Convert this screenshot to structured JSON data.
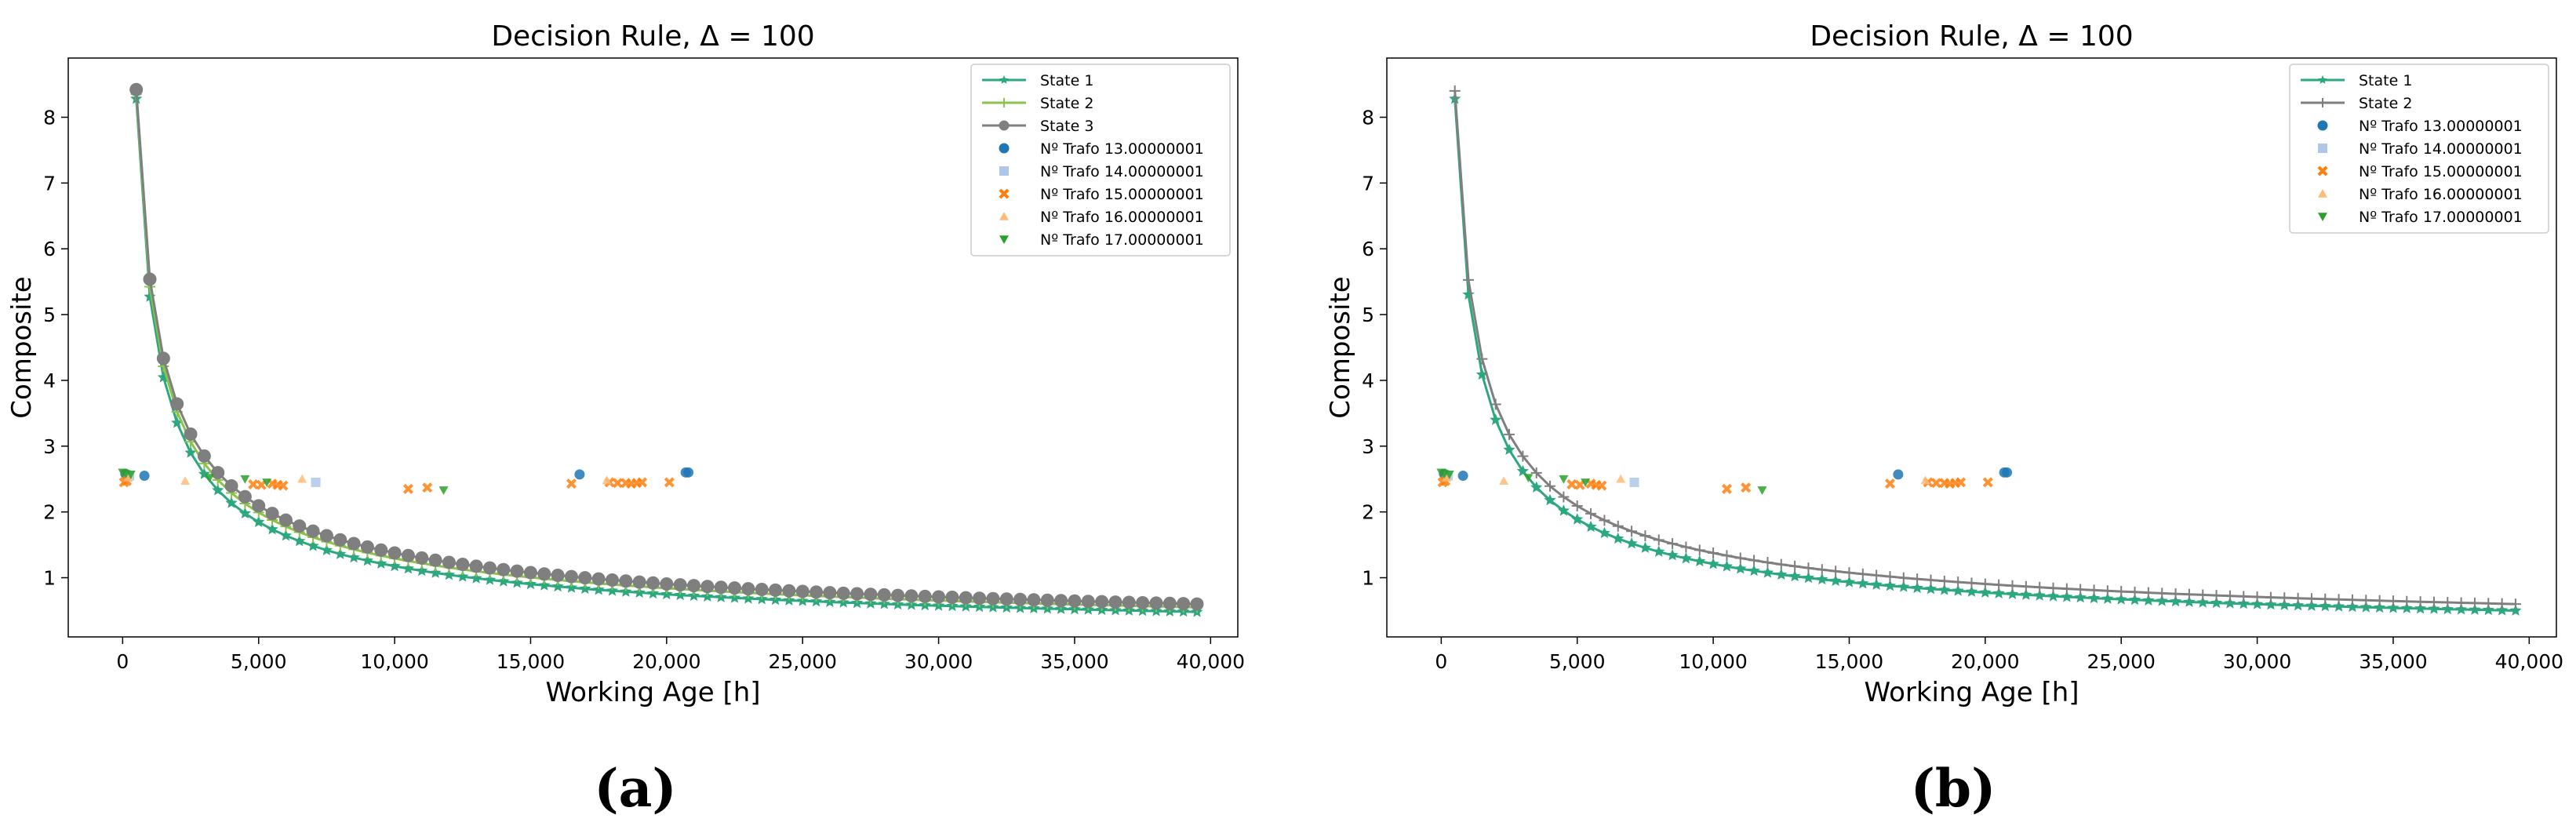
{
  "chart_data": [
    {
      "type": "line",
      "title": "Decision Rule, Δ = 100",
      "xlabel": "Working Age [h]",
      "ylabel": "Composite",
      "caption": "(a)",
      "xlim": [
        -2000,
        41000
      ],
      "ylim": [
        0.1,
        8.9
      ],
      "xticks": [
        0,
        5000,
        10000,
        15000,
        20000,
        25000,
        30000,
        35000,
        40000
      ],
      "xtick_labels": [
        "0",
        "5,000",
        "10,000",
        "15,000",
        "20,000",
        "25,000",
        "30,000",
        "35,000",
        "40,000"
      ],
      "yticks": [
        1,
        2,
        3,
        4,
        5,
        6,
        7,
        8
      ],
      "ytick_labels": [
        "1",
        "2",
        "3",
        "4",
        "5",
        "6",
        "7",
        "8"
      ],
      "grid": false,
      "legend_position": "top-right",
      "curves": [
        {
          "name": "State 1",
          "color": "#2ca87f",
          "marker": "star",
          "y_start": 8.28,
          "y_end": 0.48,
          "x_start": 500,
          "x_end": 39500,
          "step": 500
        },
        {
          "name": "State 2",
          "color": "#8bc34a",
          "marker": "plus",
          "y_start": 8.35,
          "y_end": 0.55,
          "x_start": 500,
          "x_end": 39500,
          "step": 500
        },
        {
          "name": "State 3",
          "color": "#7f7f7f",
          "marker": "circle",
          "y_start": 8.42,
          "y_end": 0.6,
          "x_start": 500,
          "x_end": 39500,
          "step": 500
        }
      ],
      "scatter": [
        {
          "name": "Nº Trafo 13.00000001",
          "color": "#1f77b4",
          "marker": "circle",
          "points": [
            [
              100,
              2.58
            ],
            [
              800,
              2.55
            ],
            [
              16800,
              2.57
            ],
            [
              20700,
              2.6
            ],
            [
              20800,
              2.6
            ]
          ]
        },
        {
          "name": "Nº Trafo 14.00000001",
          "color": "#aec7e8",
          "marker": "square",
          "points": [
            [
              7100,
              2.45
            ],
            [
              250,
              2.55
            ]
          ]
        },
        {
          "name": "Nº Trafo 15.00000001",
          "color": "#ff7f0e",
          "marker": "x",
          "points": [
            [
              50,
              2.45
            ],
            [
              150,
              2.47
            ],
            [
              4800,
              2.42
            ],
            [
              5100,
              2.41
            ],
            [
              5500,
              2.43
            ],
            [
              5700,
              2.41
            ],
            [
              5900,
              2.4
            ],
            [
              10500,
              2.35
            ],
            [
              11200,
              2.37
            ],
            [
              16500,
              2.43
            ],
            [
              17900,
              2.45
            ],
            [
              18200,
              2.44
            ],
            [
              18500,
              2.44
            ],
            [
              18700,
              2.43
            ],
            [
              18900,
              2.44
            ],
            [
              19100,
              2.45
            ],
            [
              20100,
              2.45
            ]
          ]
        },
        {
          "name": "Nº Trafo 16.00000001",
          "color": "#ffbb78",
          "marker": "triangle-up",
          "points": [
            [
              2300,
              2.47
            ],
            [
              6600,
              2.5
            ],
            [
              17800,
              2.48
            ],
            [
              200,
              2.52
            ]
          ]
        },
        {
          "name": "Nº Trafo 17.00000001",
          "color": "#2ca02c",
          "marker": "triangle-down",
          "points": [
            [
              0,
              2.6
            ],
            [
              120,
              2.58
            ],
            [
              300,
              2.57
            ],
            [
              3200,
              2.52
            ],
            [
              4500,
              2.5
            ],
            [
              5300,
              2.45
            ],
            [
              11800,
              2.33
            ]
          ]
        }
      ]
    },
    {
      "type": "line",
      "title": "Decision Rule, Δ = 100",
      "xlabel": "Working Age [h]",
      "ylabel": "Composite",
      "caption": "(b)",
      "xlim": [
        -2000,
        41000
      ],
      "ylim": [
        0.1,
        8.9
      ],
      "xticks": [
        0,
        5000,
        10000,
        15000,
        20000,
        25000,
        30000,
        35000,
        40000
      ],
      "xtick_labels": [
        "0",
        "5,000",
        "10,000",
        "15,000",
        "20,000",
        "25,000",
        "30,000",
        "35,000",
        "40,000"
      ],
      "yticks": [
        1,
        2,
        3,
        4,
        5,
        6,
        7,
        8
      ],
      "ytick_labels": [
        "1",
        "2",
        "3",
        "4",
        "5",
        "6",
        "7",
        "8"
      ],
      "grid": false,
      "legend_position": "top-right",
      "curves": [
        {
          "name": "State 1",
          "color": "#2ca87f",
          "marker": "star",
          "y_start": 8.28,
          "y_end": 0.5,
          "x_start": 500,
          "x_end": 39500,
          "step": 500
        },
        {
          "name": "State 2",
          "color": "#7f7f7f",
          "marker": "plus",
          "y_start": 8.4,
          "y_end": 0.6,
          "x_start": 500,
          "x_end": 39500,
          "step": 500
        }
      ],
      "scatter": [
        {
          "name": "Nº Trafo 13.00000001",
          "color": "#1f77b4",
          "marker": "circle",
          "points": [
            [
              100,
              2.58
            ],
            [
              800,
              2.55
            ],
            [
              16800,
              2.57
            ],
            [
              20700,
              2.6
            ],
            [
              20800,
              2.6
            ]
          ]
        },
        {
          "name": "Nº Trafo 14.00000001",
          "color": "#aec7e8",
          "marker": "square",
          "points": [
            [
              7100,
              2.45
            ],
            [
              250,
              2.55
            ]
          ]
        },
        {
          "name": "Nº Trafo 15.00000001",
          "color": "#ff7f0e",
          "marker": "x",
          "points": [
            [
              50,
              2.45
            ],
            [
              150,
              2.47
            ],
            [
              4800,
              2.42
            ],
            [
              5100,
              2.41
            ],
            [
              5500,
              2.43
            ],
            [
              5700,
              2.41
            ],
            [
              5900,
              2.4
            ],
            [
              10500,
              2.35
            ],
            [
              11200,
              2.37
            ],
            [
              16500,
              2.43
            ],
            [
              17900,
              2.45
            ],
            [
              18200,
              2.44
            ],
            [
              18500,
              2.44
            ],
            [
              18700,
              2.43
            ],
            [
              18900,
              2.44
            ],
            [
              19100,
              2.45
            ],
            [
              20100,
              2.45
            ]
          ]
        },
        {
          "name": "Nº Trafo 16.00000001",
          "color": "#ffbb78",
          "marker": "triangle-up",
          "points": [
            [
              2300,
              2.47
            ],
            [
              6600,
              2.5
            ],
            [
              17800,
              2.48
            ],
            [
              200,
              2.52
            ]
          ]
        },
        {
          "name": "Nº Trafo 17.00000001",
          "color": "#2ca02c",
          "marker": "triangle-down",
          "points": [
            [
              0,
              2.6
            ],
            [
              120,
              2.58
            ],
            [
              300,
              2.57
            ],
            [
              3200,
              2.52
            ],
            [
              4500,
              2.5
            ],
            [
              5300,
              2.45
            ],
            [
              11800,
              2.33
            ]
          ]
        }
      ]
    }
  ]
}
